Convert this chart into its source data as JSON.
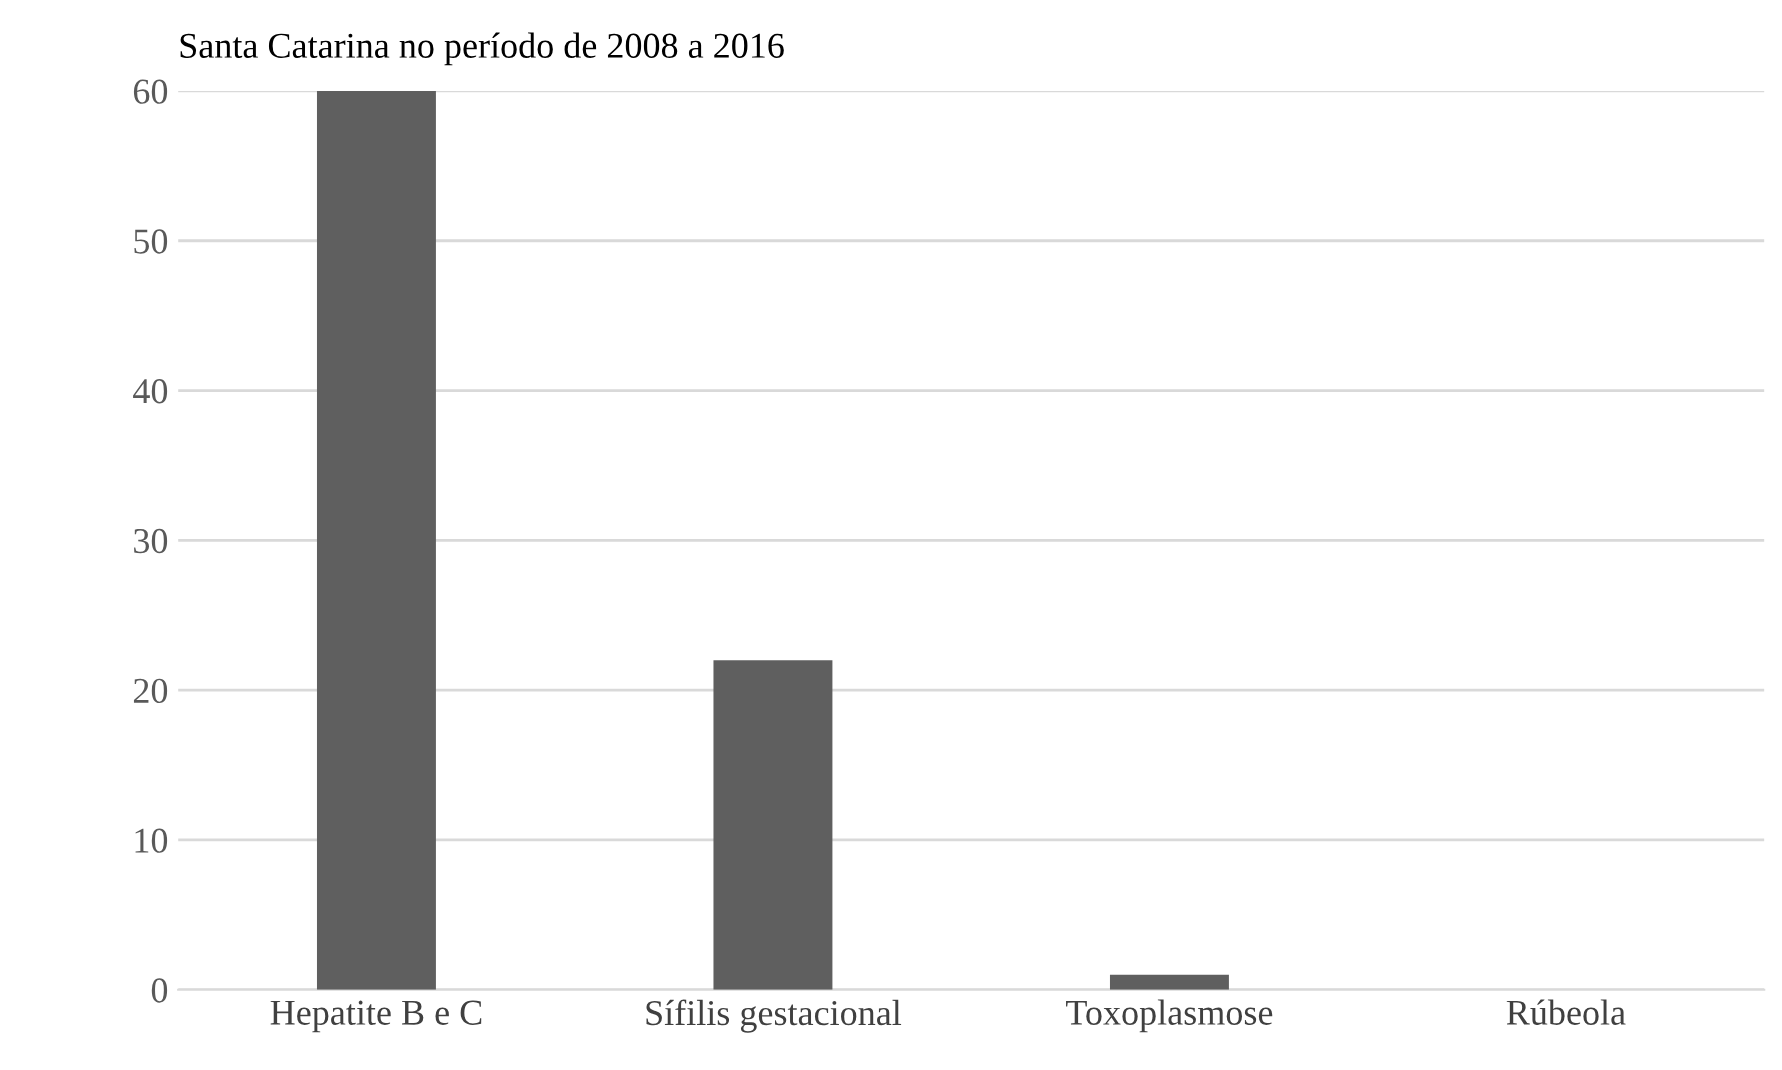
{
  "chart_data": {
    "type": "bar",
    "title": "Santa Catarina no período de 2008 a 2016",
    "categories": [
      "Hepatite B e C",
      "Sífilis gestacional",
      "Toxoplasmose",
      "Rúbeola"
    ],
    "values": [
      60,
      22,
      1,
      0
    ],
    "color": "#5f5f5f",
    "ylim": [
      0,
      60
    ],
    "yticks": [
      0,
      10,
      20,
      30,
      40,
      50,
      60
    ],
    "grid": "y"
  }
}
